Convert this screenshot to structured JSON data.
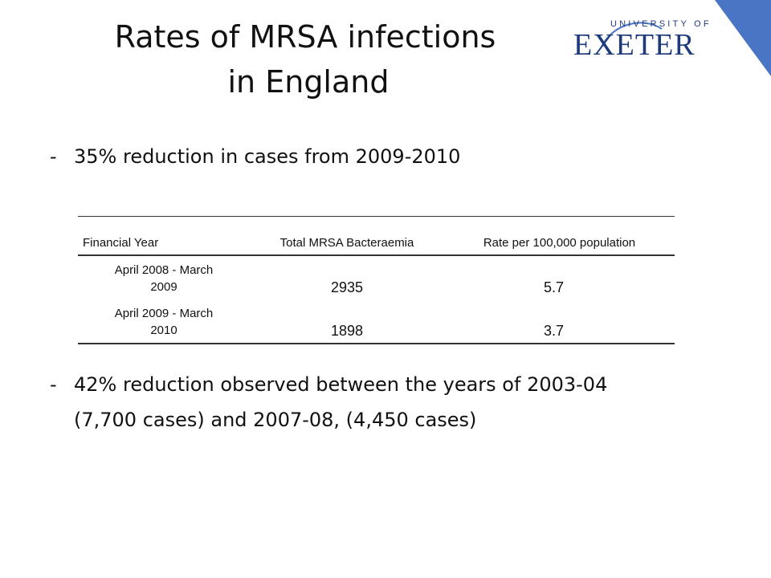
{
  "slide": {
    "title_line1": "Rates of MRSA infections",
    "title_line2": "in England",
    "logo": {
      "top_text": "UNIVERSITY OF",
      "main_text": "EXETER",
      "brand_color": "#1f3a7a",
      "accent_color": "#4a74c4"
    },
    "bullets": [
      {
        "marker": "-",
        "text": "35% reduction in cases from 2009-2010"
      },
      {
        "marker": "-",
        "text": "42% reduction observed between the years of 2003-04",
        "continuation": "(7,700 cases) and 2007-08, (4,450 cases)"
      }
    ],
    "table": {
      "columns": [
        "Financial Year",
        "Total MRSA Bacteraemia",
        "Rate per 100,000 population"
      ],
      "rows": [
        {
          "year_line1": "April 2008 - March",
          "year_line2": "2009",
          "total": "2935",
          "rate": "5.7"
        },
        {
          "year_line1": "April 2009 - March",
          "year_line2": "2010",
          "total": "1898",
          "rate": "3.7"
        }
      ]
    }
  }
}
